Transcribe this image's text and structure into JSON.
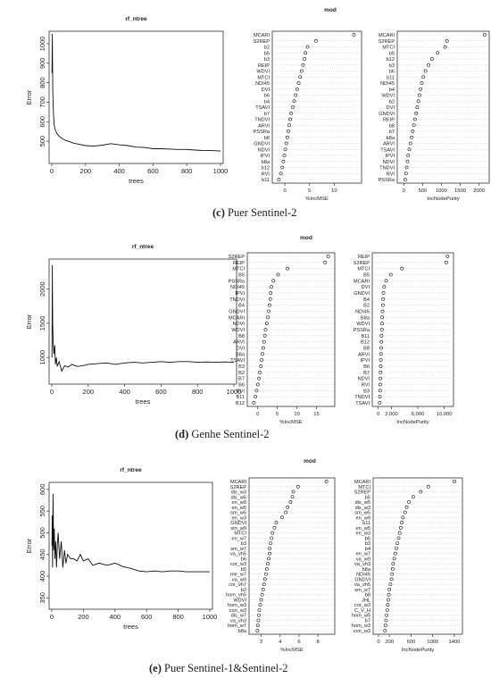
{
  "panels": [
    {
      "caption_letter": "(c)",
      "caption_text": " Puer Sentinel-2",
      "chart_data": [
        {
          "type": "line",
          "title": "rf_ntree",
          "xlabel": "trees",
          "ylabel": "Error",
          "xlim": [
            0,
            1000
          ],
          "ylim": [
            400,
            1050
          ],
          "xticks": [
            0,
            200,
            400,
            600,
            800,
            1000
          ],
          "yticks": [
            500,
            600,
            700,
            800,
            900,
            1000
          ],
          "x": [
            1,
            3,
            6,
            10,
            15,
            20,
            30,
            45,
            60,
            80,
            100,
            130,
            160,
            200,
            250,
            300,
            350,
            400,
            450,
            500,
            550,
            600,
            650,
            700,
            750,
            800,
            850,
            900,
            950,
            1000
          ],
          "y": [
            850,
            1050,
            760,
            640,
            580,
            560,
            540,
            525,
            515,
            505,
            500,
            490,
            485,
            478,
            475,
            480,
            488,
            482,
            478,
            470,
            468,
            462,
            462,
            460,
            458,
            458,
            455,
            452,
            452,
            450
          ]
        },
        {
          "type": "scatter",
          "title": "mod",
          "xlabel": "%IncMSE",
          "xlim": [
            -2,
            15
          ],
          "xticks": [
            0,
            5,
            10
          ],
          "variables": [
            "MCARI",
            "S2REP",
            "b2",
            "b5",
            "b3",
            "REIP",
            "WDVI",
            "MTCI",
            "NDI45",
            "DVI",
            "b6",
            "b4",
            "TSAVI",
            "b7",
            "TNDVI",
            "ARVI",
            "PSSRa",
            "b8",
            "GNDVI",
            "NDVI",
            "IPVI",
            "b8a",
            "b12",
            "RVI",
            "b11"
          ],
          "values": [
            14.0,
            6.3,
            4.6,
            4.2,
            4.0,
            3.7,
            3.4,
            3.1,
            2.8,
            2.5,
            2.2,
            1.9,
            1.6,
            1.3,
            1.1,
            0.9,
            0.7,
            0.5,
            0.3,
            0.1,
            -0.1,
            -0.3,
            -0.5,
            -0.8,
            -1.2
          ]
        },
        {
          "type": "scatter",
          "xlabel": "IncNodePurity",
          "xlim": [
            -100,
            2200
          ],
          "xticks": [
            0,
            500,
            1000,
            1500,
            2000
          ],
          "variables": [
            "MCARI",
            "S2REP",
            "MTCI",
            "b5",
            "b12",
            "b3",
            "b6",
            "b11",
            "NDI45",
            "b4",
            "WDVI",
            "b2",
            "DVI",
            "GNDVI",
            "REIP",
            "b8",
            "b7",
            "b8a",
            "ARVI",
            "TSAVI",
            "IPVI",
            "NDVI",
            "TNDVI",
            "RVI",
            "PSSRa"
          ],
          "values": [
            2150,
            1150,
            1100,
            900,
            750,
            660,
            580,
            520,
            480,
            450,
            420,
            390,
            360,
            330,
            300,
            270,
            240,
            210,
            180,
            150,
            120,
            100,
            80,
            60,
            40
          ]
        }
      ]
    },
    {
      "caption_letter": "(d)",
      "caption_text": " Genhe Sentinel-2",
      "chart_data": [
        {
          "type": "line",
          "title": "rf_ntree",
          "xlabel": "trees",
          "ylabel": "Error",
          "xlim": [
            0,
            1000
          ],
          "ylim": [
            650,
            2400
          ],
          "xticks": [
            0,
            200,
            400,
            600,
            800,
            1000
          ],
          "yticks": [
            1000,
            1500,
            2000
          ],
          "x": [
            1,
            3,
            5,
            8,
            12,
            16,
            20,
            25,
            30,
            40,
            55,
            70,
            90,
            110,
            140,
            170,
            200,
            250,
            300,
            350,
            400,
            450,
            500,
            550,
            600,
            650,
            700,
            750,
            800,
            850,
            900,
            950,
            1000
          ],
          "y": [
            1000,
            2350,
            1500,
            1200,
            1050,
            1180,
            900,
            1000,
            870,
            940,
            800,
            880,
            860,
            900,
            870,
            880,
            900,
            910,
            920,
            900,
            920,
            930,
            920,
            930,
            940,
            930,
            940,
            940,
            930,
            935,
            930,
            935,
            930
          ]
        },
        {
          "type": "scatter",
          "title": "mod",
          "xlabel": "%IncMSE",
          "xlim": [
            -2,
            19
          ],
          "xticks": [
            0,
            5,
            10,
            15
          ],
          "variables": [
            "S2REP",
            "REIP",
            "MTCI",
            "B5",
            "PSSRa",
            "NDI45",
            "IPVI",
            "TNDVI",
            "B4",
            "GNDVI",
            "MCARI",
            "NDVI",
            "WDVI",
            "B8",
            "ARVI",
            "DVI",
            "B8a",
            "TSAVI",
            "B3",
            "B2",
            "B7",
            "B6",
            "RVI",
            "B11",
            "B12"
          ],
          "values": [
            18.0,
            17.2,
            7.6,
            5.2,
            4.0,
            3.5,
            3.3,
            3.2,
            3.0,
            2.8,
            2.6,
            2.3,
            2.0,
            1.8,
            1.6,
            1.4,
            1.2,
            1.0,
            0.8,
            0.5,
            0.3,
            0.0,
            -0.3,
            -0.6,
            -1.0
          ]
        },
        {
          "type": "scatter",
          "xlabel": "IncNodePurity",
          "xlim": [
            -500,
            11000
          ],
          "xticks": [
            0,
            2000,
            6000,
            10000
          ],
          "xticklabels": [
            "0",
            "2,000",
            "6,000",
            "10,000"
          ],
          "variables": [
            "REIP",
            "S2REP",
            "MTCI",
            "B5",
            "MCARI",
            "DVI",
            "GNDVI",
            "B4",
            "B2",
            "NDI45",
            "B8a",
            "WDVI",
            "PSSRa",
            "B11",
            "B12",
            "B8",
            "ARVI",
            "IPVI",
            "B6",
            "B7",
            "NDVI",
            "RVI",
            "B3",
            "TNDVI",
            "TSAVI"
          ],
          "values": [
            10500,
            10300,
            3600,
            1900,
            1200,
            900,
            800,
            750,
            700,
            650,
            600,
            580,
            550,
            500,
            480,
            450,
            420,
            400,
            380,
            350,
            320,
            300,
            280,
            250,
            220
          ]
        }
      ]
    },
    {
      "caption_letter": "(e)",
      "caption_text": " Puer Sentinel-1&Sentinel-2",
      "chart_data": [
        {
          "type": "line",
          "title": "rf_ntree",
          "xlabel": "trees",
          "ylabel": "Error",
          "xlim": [
            0,
            1000
          ],
          "ylim": [
            330,
            610
          ],
          "xticks": [
            0,
            200,
            400,
            600,
            800,
            1000
          ],
          "yticks": [
            350,
            400,
            450,
            500,
            550,
            600
          ],
          "x": [
            1,
            3,
            5,
            8,
            12,
            16,
            20,
            25,
            30,
            35,
            40,
            50,
            60,
            70,
            80,
            90,
            100,
            120,
            140,
            160,
            180,
            200,
            230,
            260,
            300,
            350,
            400,
            450,
            500,
            550,
            600,
            650,
            700,
            750,
            800,
            850,
            900,
            950,
            1000
          ],
          "y": [
            470,
            540,
            420,
            590,
            460,
            510,
            440,
            480,
            420,
            470,
            500,
            440,
            480,
            420,
            460,
            430,
            450,
            440,
            440,
            435,
            450,
            435,
            440,
            425,
            430,
            425,
            430,
            422,
            418,
            412,
            410,
            412,
            410,
            412,
            412,
            410,
            410,
            410,
            410
          ]
        },
        {
          "type": "scatter",
          "title": "mod",
          "xlabel": "%IncMSE",
          "xlim": [
            1,
            9.5
          ],
          "xticks": [
            2,
            4,
            6,
            8
          ],
          "variables": [
            "MCARI",
            "S2REP",
            "dis_w3",
            "dis_w5",
            "en_w9",
            "en_w5",
            "sm_w5",
            "en_w3",
            "GNDVI",
            "sm_w9",
            "MTCI",
            "en_w7",
            "b3",
            "sm_w7",
            "va_vh5",
            "b6",
            "cor_w3",
            "b5",
            "me_w7",
            "va_w9",
            "cor_vh7",
            "b2",
            "hom_vh5",
            "WDVI",
            "hom_w3",
            "con_w3",
            "dis_w7",
            "va_vh3",
            "hom_w7",
            "b8a"
          ],
          "values": [
            8.9,
            5.9,
            5.4,
            5.3,
            5.1,
            4.8,
            4.6,
            4.2,
            3.6,
            3.4,
            3.2,
            3.1,
            3.0,
            2.9,
            2.9,
            2.8,
            2.7,
            2.6,
            2.5,
            2.4,
            2.3,
            2.2,
            2.1,
            2.0,
            1.9,
            1.8,
            1.75,
            1.7,
            1.65,
            1.6
          ]
        },
        {
          "type": "scatter",
          "xlabel": "IncNodePurity",
          "xlim": [
            -50,
            1500
          ],
          "xticks": [
            0,
            200,
            600,
            1000,
            1400
          ],
          "variables": [
            "MCARI",
            "MTCI",
            "S2REP",
            "b5",
            "dis_w5",
            "dis_w3",
            "sm_w5",
            "en_w9",
            "b11",
            "en_w5",
            "en_w3",
            "b6",
            "b3",
            "b4",
            "en_w7",
            "va_w9",
            "va_vh3",
            "b8a",
            "NDI45",
            "GNDVI",
            "va_vh5",
            "sm_w7",
            "b8",
            "JHL",
            "cor_w3",
            "C_V_H",
            "hom_w5",
            "b7",
            "hom_w3",
            "con_w3"
          ],
          "values": [
            1400,
            920,
            780,
            640,
            560,
            520,
            490,
            450,
            430,
            410,
            390,
            370,
            350,
            330,
            310,
            290,
            270,
            260,
            250,
            240,
            220,
            200,
            190,
            180,
            170,
            160,
            150,
            140,
            130,
            120
          ]
        }
      ]
    }
  ]
}
